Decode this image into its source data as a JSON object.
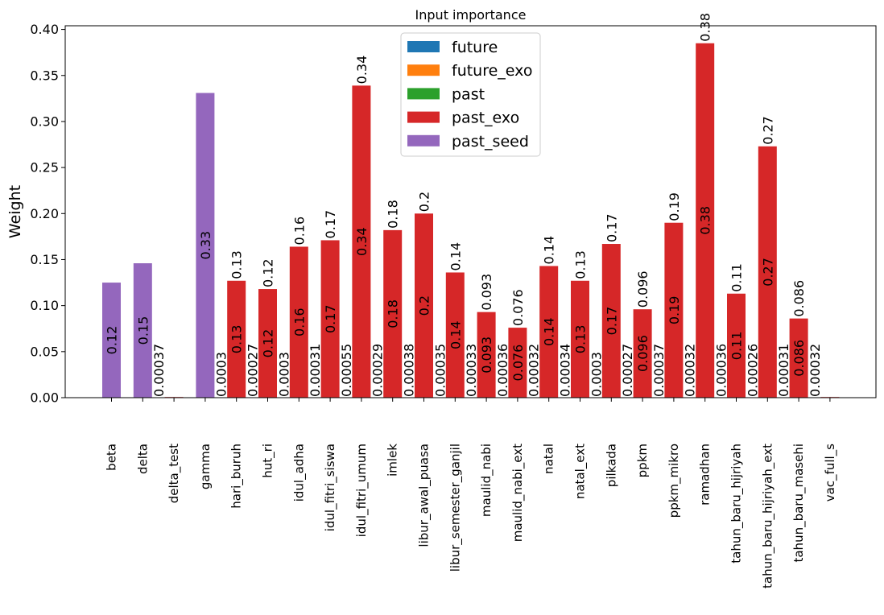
{
  "chart_data": {
    "type": "bar",
    "title": "Input importance",
    "xlabel": "",
    "ylabel": "Weight",
    "ylim": [
      0,
      0.404
    ],
    "yticks": [
      "0.00",
      "0.05",
      "0.10",
      "0.15",
      "0.20",
      "0.25",
      "0.30",
      "0.35",
      "0.40"
    ],
    "grid": false,
    "legend_position": "top-center",
    "legend": [
      {
        "name": "future",
        "color": "#1f77b4"
      },
      {
        "name": "future_exo",
        "color": "#ff7f0e"
      },
      {
        "name": "past",
        "color": "#2ca02c"
      },
      {
        "name": "past_exo",
        "color": "#d62728"
      },
      {
        "name": "past_seed",
        "color": "#9467bd"
      }
    ],
    "categories": [
      "beta",
      "delta",
      "delta_test",
      "gamma",
      "hari_buruh",
      "hut_ri",
      "idul_adha",
      "idul_fitri_siswa",
      "idul_fitri_umum",
      "imlek",
      "libur_awal_puasa",
      "libur_semester_ganjil",
      "maulid_nabi",
      "maulid_nabi_ext",
      "natal",
      "natal_ext",
      "pilkada",
      "ppkm",
      "ppkm_mikro",
      "ramadhan",
      "tahun_baru_hijriyah",
      "tahun_baru_hijriyah_ext",
      "tahun_baru_masehi",
      "vac_full_s"
    ],
    "groups": [
      "past_seed",
      "past_seed",
      "past_exo",
      "past_seed",
      "past_exo",
      "past_exo",
      "past_exo",
      "past_exo",
      "past_exo",
      "past_exo",
      "past_exo",
      "past_exo",
      "past_exo",
      "past_exo",
      "past_exo",
      "past_exo",
      "past_exo",
      "past_exo",
      "past_exo",
      "past_exo",
      "past_exo",
      "past_exo",
      "past_exo",
      "past_exo"
    ],
    "values": [
      0.125,
      0.146,
      0.00037,
      0.331,
      0.127,
      0.118,
      0.164,
      0.171,
      0.339,
      0.182,
      0.2,
      0.136,
      0.093,
      0.076,
      0.143,
      0.127,
      0.167,
      0.096,
      0.19,
      0.385,
      0.113,
      0.273,
      0.086,
      0.00032
    ],
    "value_labels": [
      "0.12",
      "0.15",
      "",
      "0.33",
      "0.13",
      "0.12",
      "0.16",
      "0.17",
      "0.34",
      "0.18",
      "0.2",
      "0.14",
      "0.093",
      "0.076",
      "0.14",
      "0.13",
      "0.17",
      "0.096",
      "0.19",
      "0.38",
      "0.11",
      "0.27",
      "0.086",
      ""
    ],
    "top_labels": [
      "",
      "",
      "",
      "",
      "0.13",
      "0.12",
      "0.16",
      "0.17",
      "0.34",
      "0.18",
      "0.2",
      "0.14",
      "0.093",
      "0.076",
      "0.14",
      "0.13",
      "0.17",
      "0.096",
      "0.19",
      "0.38",
      "0.11",
      "0.27",
      "0.086",
      ""
    ],
    "base_labels": [
      "",
      "",
      "0.00037",
      "",
      "0.0003",
      "0.00027",
      "0.0003",
      "0.00031",
      "0.00055",
      "0.00029",
      "0.00038",
      "0.00035",
      "0.00033",
      "0.00036",
      "0.00032",
      "0.00034",
      "0.0003",
      "0.00027",
      "0.00037",
      "0.00032",
      "0.00036",
      "0.00026",
      "0.00031",
      "0.00032"
    ]
  }
}
